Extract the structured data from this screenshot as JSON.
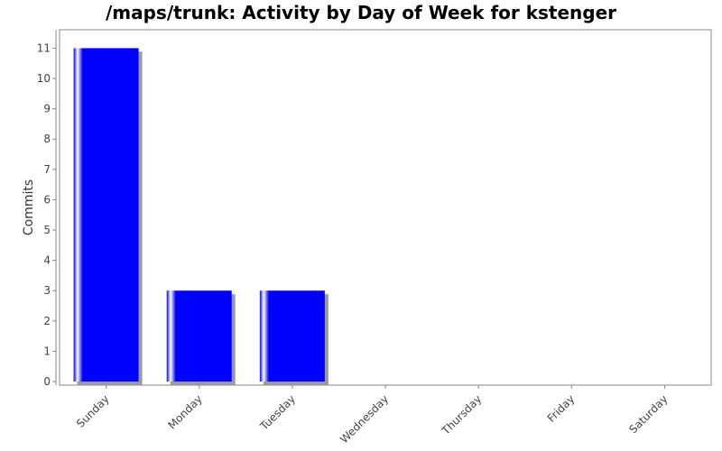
{
  "chart_data": {
    "type": "bar",
    "title": "/maps/trunk: Activity by Day of Week for kstenger",
    "xlabel": "",
    "ylabel": "Commits",
    "categories": [
      "Sunday",
      "Monday",
      "Tuesday",
      "Wednesday",
      "Thursday",
      "Friday",
      "Saturday"
    ],
    "values": [
      11,
      3,
      3,
      0,
      0,
      0,
      0
    ],
    "ylim": [
      0,
      11.5
    ],
    "yticks": [
      0,
      1,
      2,
      3,
      4,
      5,
      6,
      7,
      8,
      9,
      10,
      11
    ],
    "grid": false,
    "legend": "none",
    "bar_color": "#0000ff",
    "bar_highlight_color": "#ffffff",
    "bar_shadow_color": "#999999",
    "axis_color": "#888888"
  }
}
